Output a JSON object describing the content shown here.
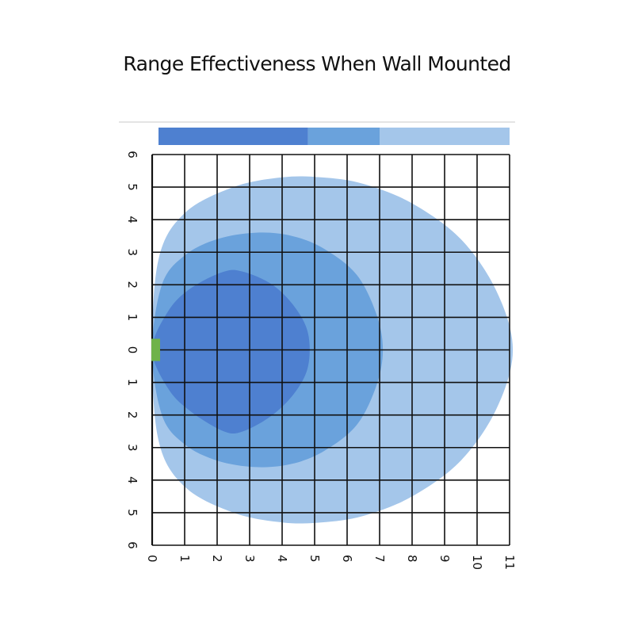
{
  "title": "Range Effectiveness When Wall Mounted",
  "colors": {
    "zone_inner": "#4e80d0",
    "zone_middle": "#6aa2dc",
    "zone_outer": "#a4c6ea",
    "sensor": "#6fb24a",
    "grid": "#111111"
  },
  "chart_data": {
    "type": "area",
    "title": "Range Effectiveness When Wall Mounted",
    "x_ticks": [
      "0",
      "1",
      "2",
      "3",
      "4",
      "5",
      "6",
      "7",
      "8",
      "9",
      "10",
      "11"
    ],
    "y_ticks": [
      "6",
      "5",
      "4",
      "3",
      "2",
      "1",
      "0",
      "1",
      "2",
      "3",
      "4",
      "5",
      "6"
    ],
    "xlim": [
      0,
      11
    ],
    "ylim": [
      -6,
      6
    ],
    "grid": true,
    "legend": "top",
    "legend_segments": [
      {
        "color": "#4e80d0",
        "from": 0,
        "to": 4.8
      },
      {
        "color": "#6aa2dc",
        "from": 4.8,
        "to": 7
      },
      {
        "color": "#a4c6ea",
        "from": 7,
        "to": 11
      }
    ],
    "sensor": {
      "x": 0,
      "y": 0
    },
    "zones": [
      {
        "name": "outer",
        "color": "#a4c6ea",
        "points": [
          [
            0,
            0
          ],
          [
            0.2,
            2.8
          ],
          [
            1,
            4.2
          ],
          [
            2.5,
            5.0
          ],
          [
            4,
            5.3
          ],
          [
            5.2,
            5.3
          ],
          [
            6.5,
            5.1
          ],
          [
            8,
            4.5
          ],
          [
            9.5,
            3.4
          ],
          [
            10.6,
            1.8
          ],
          [
            11.1,
            0
          ],
          [
            10.6,
            -1.8
          ],
          [
            9.5,
            -3.4
          ],
          [
            8,
            -4.5
          ],
          [
            6.5,
            -5.1
          ],
          [
            5.2,
            -5.3
          ],
          [
            4,
            -5.3
          ],
          [
            2.5,
            -5.0
          ],
          [
            1,
            -4.2
          ],
          [
            0.2,
            -2.8
          ]
        ]
      },
      {
        "name": "middle",
        "color": "#6aa2dc",
        "points": [
          [
            0,
            0
          ],
          [
            0.3,
            2.0
          ],
          [
            1,
            2.9
          ],
          [
            2,
            3.4
          ],
          [
            3.2,
            3.6
          ],
          [
            4.3,
            3.5
          ],
          [
            5.3,
            3.1
          ],
          [
            6.3,
            2.3
          ],
          [
            6.9,
            1.1
          ],
          [
            7.1,
            0
          ],
          [
            6.9,
            -1.1
          ],
          [
            6.3,
            -2.3
          ],
          [
            5.3,
            -3.1
          ],
          [
            4.3,
            -3.5
          ],
          [
            3.2,
            -3.6
          ],
          [
            2,
            -3.4
          ],
          [
            1,
            -2.9
          ],
          [
            0.3,
            -2.0
          ]
        ]
      },
      {
        "name": "inner",
        "color": "#4e80d0",
        "points": [
          [
            0,
            0
          ],
          [
            0.5,
            1.2
          ],
          [
            1.2,
            1.9
          ],
          [
            2.2,
            2.4
          ],
          [
            2.8,
            2.4
          ],
          [
            3.7,
            2.0
          ],
          [
            4.4,
            1.3
          ],
          [
            4.8,
            0.5
          ],
          [
            4.8,
            -0.5
          ],
          [
            4.4,
            -1.3
          ],
          [
            3.7,
            -2.0
          ],
          [
            2.8,
            -2.5
          ],
          [
            2.2,
            -2.5
          ],
          [
            1.2,
            -1.9
          ],
          [
            0.5,
            -1.2
          ]
        ]
      }
    ]
  }
}
